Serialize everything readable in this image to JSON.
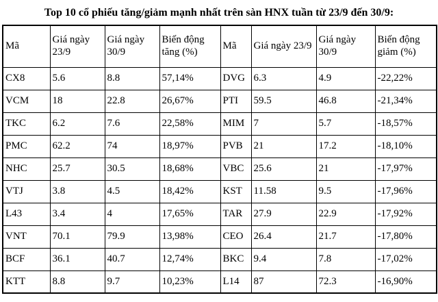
{
  "title": "Top 10 cổ phiếu tăng/giảm mạnh nhất trên sàn HNX tuần từ 23/9 đến 30/9:",
  "table": {
    "headers": [
      "Mã",
      "Giá ngày 23/9",
      "Giá ngày 30/9",
      "Biến động tăng (%)",
      "Mã",
      "Giá ngày 23/9",
      "Giá ngày 30/9",
      "Biến động giảm (%)"
    ],
    "rows": [
      [
        "CX8",
        "5.6",
        "8.8",
        "57,14%",
        "DVG",
        "6.3",
        "4.9",
        "-22,22%"
      ],
      [
        "VCM",
        "18",
        "22.8",
        "26,67%",
        "PTI",
        "59.5",
        "46.8",
        "-21,34%"
      ],
      [
        "TKC",
        "6.2",
        "7.6",
        "22,58%",
        "MIM",
        "7",
        "5.7",
        "-18,57%"
      ],
      [
        "PMC",
        "62.2",
        "74",
        "18,97%",
        "PVB",
        "21",
        "17.2",
        "-18,10%"
      ],
      [
        "NHC",
        "25.7",
        "30.5",
        "18,68%",
        "VBC",
        "25.6",
        "21",
        "-17,97%"
      ],
      [
        "VTJ",
        "3.8",
        "4.5",
        "18,42%",
        "KST",
        "11.58",
        "9.5",
        "-17,96%"
      ],
      [
        "L43",
        "3.4",
        "4",
        "17,65%",
        "TAR",
        "27.9",
        "22.9",
        "-17,92%"
      ],
      [
        "VNT",
        "70.1",
        "79.9",
        "13,98%",
        "CEO",
        "26.4",
        "21.7",
        "-17,80%"
      ],
      [
        "BCF",
        "36.1",
        "40.7",
        "12,74%",
        "BKC",
        "9.4",
        "7.8",
        "-17,02%"
      ],
      [
        "KTT",
        "8.8",
        "9.7",
        "10,23%",
        "L14",
        "87",
        "72.3",
        "-16,90%"
      ]
    ]
  }
}
